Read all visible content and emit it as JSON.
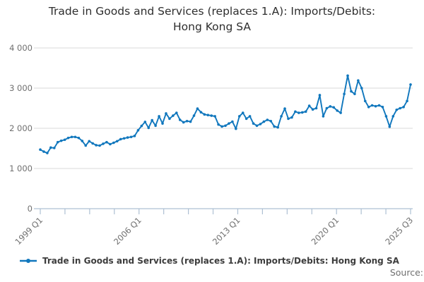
{
  "header": {
    "title": "Trade in Goods and Services (replaces 1.A): Imports/Debits:\nHong Kong SA"
  },
  "legend": {
    "label": "Trade in Goods and Services (replaces 1.A): Imports/Debits: Hong Kong SA"
  },
  "footer": {
    "source_label": "Source:"
  },
  "colors": {
    "line": "#1077bd",
    "grid": "#d9d9d9",
    "axis": "#aec0d3",
    "tick_text": "#6f6f6f",
    "title_text": "#2e2e2e",
    "legend_text": "#3d3d3d"
  },
  "chart_data": {
    "type": "line",
    "title": "Trade in Goods and Services (replaces 1.A): Imports/Debits: Hong Kong SA",
    "frequency": "quarterly",
    "x_start": "1999 Q1",
    "x_end": "2025 Q3",
    "x_tick_labels": [
      "1999 Q1",
      "2006 Q1",
      "2013 Q1",
      "2020 Q1",
      "2025 Q3"
    ],
    "y_ticks": [
      {
        "value": 0,
        "label": "0"
      },
      {
        "value": 1000,
        "label": "1 000"
      },
      {
        "value": 2000,
        "label": "2 000"
      },
      {
        "value": 3000,
        "label": "3 000"
      },
      {
        "value": 4000,
        "label": "4 000"
      }
    ],
    "ylim": [
      0,
      4000
    ],
    "grid": "horizontal",
    "legend_position": "bottom-left",
    "marker": "circle",
    "series": [
      {
        "name": "Trade in Goods and Services (replaces 1.A): Imports/Debits: Hong Kong SA",
        "values": [
          1470,
          1420,
          1385,
          1520,
          1510,
          1655,
          1690,
          1715,
          1760,
          1785,
          1785,
          1760,
          1685,
          1570,
          1680,
          1625,
          1580,
          1570,
          1615,
          1655,
          1605,
          1640,
          1680,
          1730,
          1750,
          1770,
          1785,
          1810,
          1950,
          2060,
          2160,
          2010,
          2200,
          2065,
          2300,
          2120,
          2370,
          2240,
          2315,
          2385,
          2210,
          2150,
          2180,
          2165,
          2315,
          2490,
          2400,
          2345,
          2330,
          2315,
          2300,
          2095,
          2045,
          2065,
          2120,
          2165,
          1990,
          2300,
          2385,
          2240,
          2300,
          2120,
          2065,
          2105,
          2165,
          2210,
          2180,
          2045,
          2025,
          2300,
          2490,
          2240,
          2270,
          2415,
          2385,
          2395,
          2415,
          2560,
          2470,
          2500,
          2825,
          2300,
          2500,
          2545,
          2520,
          2440,
          2385,
          2855,
          3310,
          2920,
          2855,
          3190,
          3000,
          2680,
          2530,
          2570,
          2550,
          2570,
          2530,
          2300,
          2040,
          2300,
          2460,
          2500,
          2530,
          2680,
          3090
        ]
      }
    ]
  }
}
